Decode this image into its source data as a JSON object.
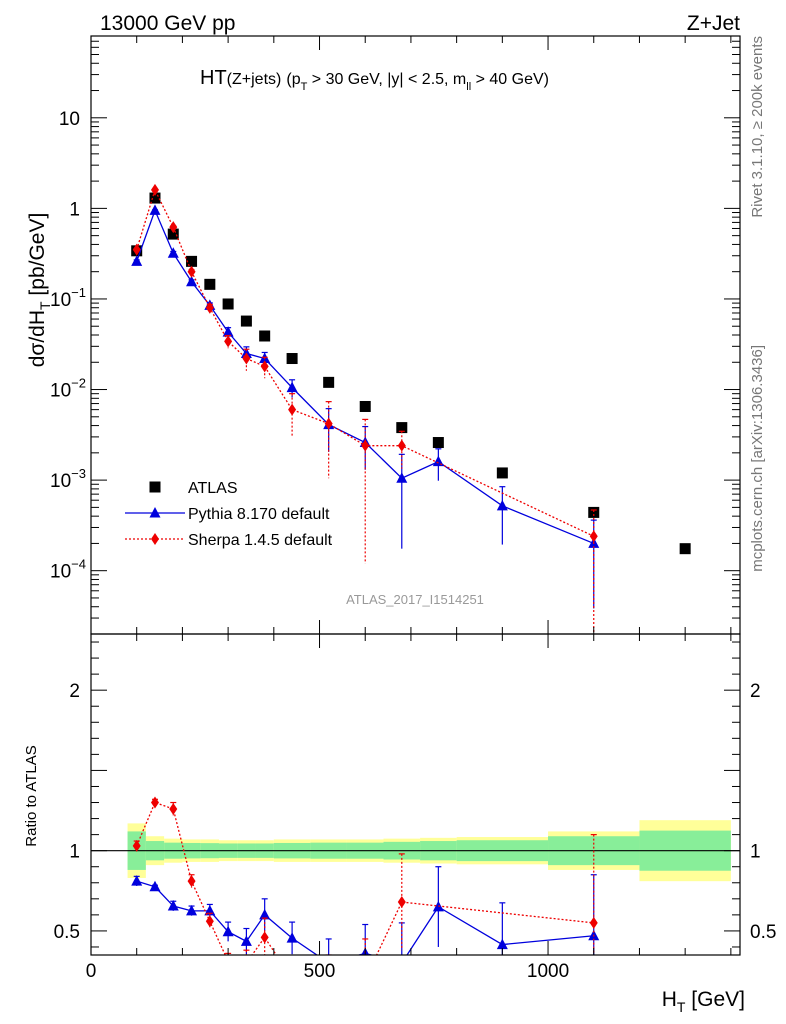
{
  "header": {
    "left": "13000 GeV pp",
    "right": "Z+Jet"
  },
  "side_labels": {
    "rivet": "Rivet 3.1.10, ≥ 200k events",
    "mcplots": "mcplots.cern.ch [arXiv:1306.3436]"
  },
  "chart_data": {
    "type": "scatter",
    "title_parts": {
      "main": "HT",
      "paren": "(Z+jets)",
      "cond_a": "(p",
      "cond_a_sub": "T",
      "cond_b": " > 30 GeV, |y| < 2.5, m",
      "cond_b_sub": "ll",
      "cond_c": " > 40 GeV)"
    },
    "watermark": "ATLAS_2017_I1514251",
    "xlabel": {
      "main": "H",
      "sub": "T",
      "unit": " [GeV]"
    },
    "ylabel": {
      "main": "dσ/dH",
      "sub": "T",
      "unit": " [pb/GeV]"
    },
    "ratio_ylabel": "Ratio to ATLAS",
    "xlim": [
      0,
      1420
    ],
    "ylim": [
      2e-05,
      80
    ],
    "yscale": "log",
    "ratio_ylim": [
      0.35,
      2.35
    ],
    "x_tick_labels": [
      {
        "v": 0,
        "t": "0"
      },
      {
        "v": 500,
        "t": "500"
      },
      {
        "v": 1000,
        "t": "1000"
      }
    ],
    "y_tick_labels": [
      {
        "v": 10,
        "t": "10",
        "exp": ""
      },
      {
        "v": 1,
        "t": "1",
        "exp": ""
      },
      {
        "v": 0.1,
        "t": "10",
        "exp": "−1"
      },
      {
        "v": 0.01,
        "t": "10",
        "exp": "−2"
      },
      {
        "v": 0.001,
        "t": "10",
        "exp": "−3"
      },
      {
        "v": 0.0001,
        "t": "10",
        "exp": "−4"
      }
    ],
    "ratio_tick_labels": [
      {
        "v": 0.5,
        "t": "0.5"
      },
      {
        "v": 1,
        "t": "1"
      },
      {
        "v": 2,
        "t": "2"
      }
    ],
    "legend_position": "lower-left",
    "series": [
      {
        "name": "ATLAS",
        "color": "#000000",
        "marker": "square",
        "x": [
          100,
          140,
          180,
          220,
          260,
          300,
          340,
          380,
          440,
          520,
          600,
          680,
          760,
          900,
          1100,
          1300
        ],
        "y": [
          0.34,
          1.3,
          0.52,
          0.26,
          0.145,
          0.088,
          0.057,
          0.039,
          0.022,
          0.012,
          0.0065,
          0.0038,
          0.0026,
          0.0012,
          0.00044,
          0.000175
        ]
      },
      {
        "name": "Pythia 8.170 default",
        "color": "#0000dd",
        "marker": "triangle",
        "line": "solid",
        "x": [
          100,
          140,
          180,
          220,
          260,
          300,
          340,
          380,
          440,
          520,
          600,
          680,
          760,
          900,
          1100
        ],
        "y": [
          0.26,
          0.95,
          0.32,
          0.155,
          0.085,
          0.043,
          0.025,
          0.022,
          0.0105,
          0.0041,
          0.0026,
          0.00105,
          0.0016,
          0.00052,
          0.0002
        ],
        "ratio": [
          0.81,
          0.775,
          0.655,
          0.625,
          0.625,
          0.495,
          0.435,
          0.6,
          0.455,
          0.3,
          0.36,
          0.3,
          0.65,
          0.415,
          0.47
        ],
        "ratio_err": [
          0.03,
          0.01,
          0.03,
          0.03,
          0.04,
          0.06,
          0.08,
          0.1,
          0.1,
          0.15,
          0.18,
          0.25,
          0.25,
          0.26,
          0.38
        ]
      },
      {
        "name": "Sherpa 1.4.5 default",
        "color": "#ee0000",
        "marker": "diamond",
        "line": "dotted",
        "x": [
          100,
          140,
          180,
          220,
          260,
          300,
          340,
          380,
          440,
          520,
          600,
          680,
          1100
        ],
        "y": [
          0.35,
          1.6,
          0.62,
          0.2,
          0.08,
          0.034,
          0.022,
          0.018,
          0.006,
          0.0042,
          0.0024,
          0.0024,
          0.00024
        ],
        "ratio": [
          1.03,
          1.3,
          1.26,
          0.81,
          0.56,
          0.31,
          0.3,
          0.46,
          0.2,
          0.2,
          0.2,
          0.68,
          0.55
        ],
        "ratio_err": [
          0.03,
          0.02,
          0.04,
          0.04,
          0.05,
          0.05,
          0.08,
          0.12,
          0.1,
          0.15,
          0.25,
          0.3,
          0.55
        ]
      }
    ],
    "ratio_bands": {
      "edges": [
        80,
        120,
        160,
        200,
        240,
        280,
        320,
        360,
        400,
        480,
        560,
        640,
        720,
        800,
        1000,
        1200,
        1400
      ],
      "yellow_half": [
        0.17,
        0.09,
        0.075,
        0.07,
        0.07,
        0.065,
        0.065,
        0.065,
        0.07,
        0.07,
        0.07,
        0.075,
        0.08,
        0.085,
        0.12,
        0.19
      ],
      "green_half": [
        0.12,
        0.06,
        0.05,
        0.048,
        0.047,
        0.045,
        0.045,
        0.045,
        0.048,
        0.05,
        0.05,
        0.055,
        0.06,
        0.065,
        0.09,
        0.125
      ]
    }
  }
}
